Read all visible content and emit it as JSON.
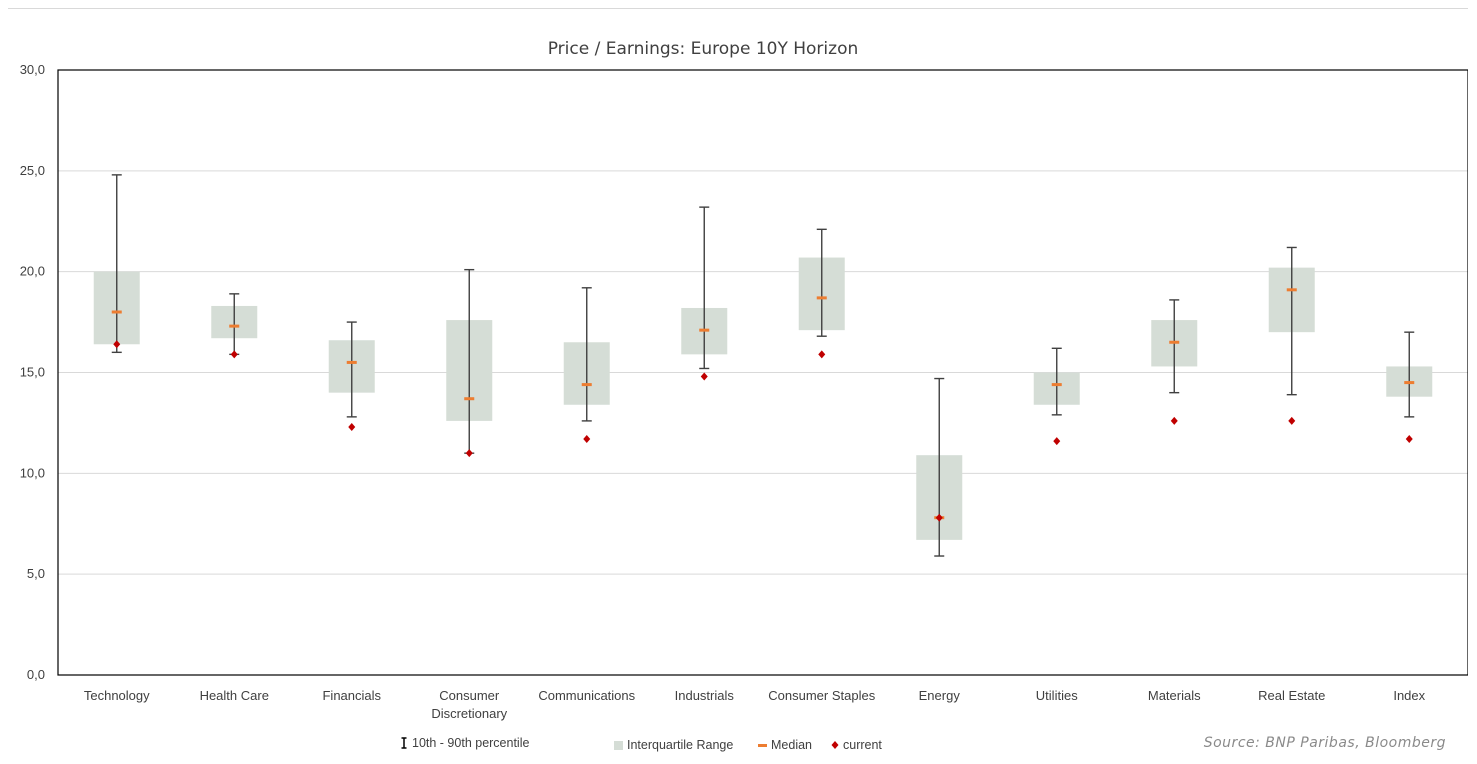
{
  "chart_data": {
    "type": "box",
    "title": "Price / Earnings: Europe 10Y Horizon",
    "categories": [
      [
        "Technology"
      ],
      [
        "Health Care"
      ],
      [
        "Financials"
      ],
      [
        "Consumer",
        "Discretionary"
      ],
      [
        "Communications"
      ],
      [
        "Industrials"
      ],
      [
        "Consumer Staples"
      ],
      [
        "Energy"
      ],
      [
        "Utilities"
      ],
      [
        "Materials"
      ],
      [
        "Real Estate"
      ],
      [
        "Index"
      ]
    ],
    "series": [
      {
        "name": "10th - 90th percentile",
        "low": [
          16.0,
          15.9,
          12.8,
          11.0,
          12.6,
          15.2,
          16.8,
          5.9,
          12.9,
          14.0,
          13.9,
          12.8
        ],
        "high": [
          24.8,
          18.9,
          17.5,
          20.1,
          19.2,
          23.2,
          22.1,
          14.7,
          16.2,
          18.6,
          21.2,
          17.0
        ]
      },
      {
        "name": "Interquartile Range",
        "q1": [
          16.4,
          16.7,
          14.0,
          12.6,
          13.4,
          15.9,
          17.1,
          6.7,
          13.4,
          15.3,
          17.0,
          13.8
        ],
        "q3": [
          20.0,
          18.3,
          16.6,
          17.6,
          16.5,
          18.2,
          20.7,
          10.9,
          15.0,
          17.6,
          20.2,
          15.3
        ]
      },
      {
        "name": "Median",
        "values": [
          18.0,
          17.3,
          15.5,
          13.7,
          14.4,
          17.1,
          18.7,
          7.8,
          14.4,
          16.5,
          19.1,
          14.5
        ]
      },
      {
        "name": "current",
        "values": [
          16.4,
          15.9,
          12.3,
          11.0,
          11.7,
          14.8,
          15.9,
          7.8,
          11.6,
          12.6,
          12.6,
          11.7
        ]
      }
    ],
    "y_ticks": [
      "0,0",
      "5,0",
      "10,0",
      "15,0",
      "20,0",
      "25,0",
      "30,0"
    ],
    "ylim": [
      0,
      30
    ],
    "grid": true,
    "legend_position": "bottom",
    "colors": {
      "whisker": "#404040",
      "iqr": "#d5ddd6",
      "median": "#ed7d31",
      "current": "#c00000",
      "grid": "#d9d9d9",
      "axis": "#000000"
    },
    "source": "Source: BNP Paribas, Bloomberg"
  }
}
